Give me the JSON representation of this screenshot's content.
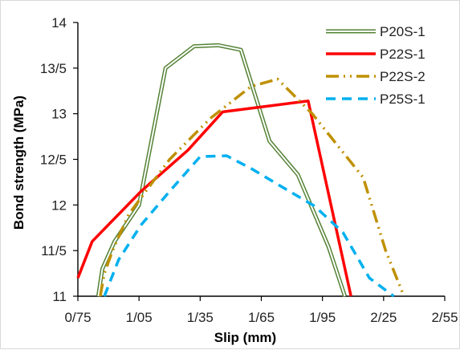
{
  "chart_data": {
    "type": "line",
    "title": "",
    "xlabel": "Slip (mm)",
    "ylabel": "Bond strength (MPa)",
    "xlim": [
      0.75,
      2.55
    ],
    "ylim": [
      11,
      14
    ],
    "x_ticks": [
      0.75,
      1.05,
      1.35,
      1.65,
      1.95,
      2.25,
      2.55
    ],
    "x_tick_labels": [
      "0/75",
      "1/05",
      "1/35",
      "1/65",
      "1/95",
      "2/25",
      "2/55"
    ],
    "y_ticks": [
      11,
      11.5,
      12,
      12.5,
      13,
      13.5,
      14
    ],
    "y_tick_labels": [
      "11",
      "11/5",
      "12",
      "12/5",
      "13",
      "13/5",
      "14"
    ],
    "grid": false,
    "legend_position": "top-right",
    "series": [
      {
        "name": "P20S-1",
        "color": "#548235",
        "style": "double",
        "x": [
          0.85,
          0.87,
          0.93,
          1.05,
          1.18,
          1.32,
          1.44,
          1.55,
          1.69,
          1.83,
          1.98,
          2.06
        ],
        "y": [
          11.0,
          11.3,
          11.6,
          12.0,
          13.5,
          13.74,
          13.75,
          13.7,
          12.7,
          12.33,
          11.54,
          11.0
        ]
      },
      {
        "name": "P22S-1",
        "color": "#ff0000",
        "style": "solid",
        "x": [
          0.75,
          0.82,
          1.06,
          1.29,
          1.46,
          1.88,
          2.09
        ],
        "y": [
          11.2,
          11.6,
          12.15,
          12.6,
          13.02,
          13.14,
          11.0
        ]
      },
      {
        "name": "P22S-2",
        "color": "#bf9000",
        "style": "dashdotdot",
        "x": [
          0.86,
          0.88,
          0.92,
          1.0,
          1.2,
          1.4,
          1.6,
          1.73,
          1.9,
          2.15,
          2.26,
          2.35
        ],
        "y": [
          11.0,
          11.25,
          11.5,
          11.9,
          12.5,
          12.95,
          13.3,
          13.38,
          13.0,
          12.3,
          11.5,
          11.0
        ]
      },
      {
        "name": "P25S-1",
        "color": "#00b0f0",
        "style": "dash",
        "x": [
          0.88,
          0.95,
          1.06,
          1.2,
          1.35,
          1.48,
          1.6,
          1.75,
          1.91,
          2.05,
          2.18,
          2.3
        ],
        "y": [
          11.0,
          11.4,
          11.78,
          12.15,
          12.53,
          12.54,
          12.4,
          12.2,
          11.99,
          11.7,
          11.2,
          11.0
        ]
      }
    ]
  }
}
